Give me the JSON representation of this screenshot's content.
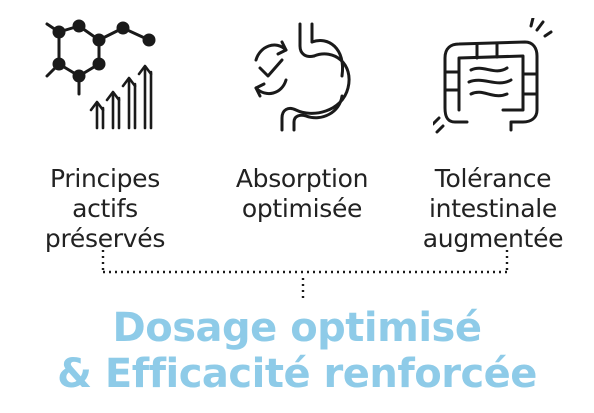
{
  "columns": [
    {
      "icon": "molecule-arrows-icon",
      "lines": [
        "Principes",
        "actifs",
        "préservés"
      ]
    },
    {
      "icon": "stomach-absorption-icon",
      "lines": [
        "Absorption",
        "optimisée"
      ]
    },
    {
      "icon": "intestine-icon",
      "lines": [
        "Tolérance",
        "intestinale",
        "augmentée"
      ]
    }
  ],
  "headline": {
    "line1": "Dosage optimisé",
    "line2": "& Efficacité renforcée"
  },
  "colors": {
    "text": "#222222",
    "accent": "#8ecbe8",
    "icon_stroke": "#1a1a1a"
  }
}
